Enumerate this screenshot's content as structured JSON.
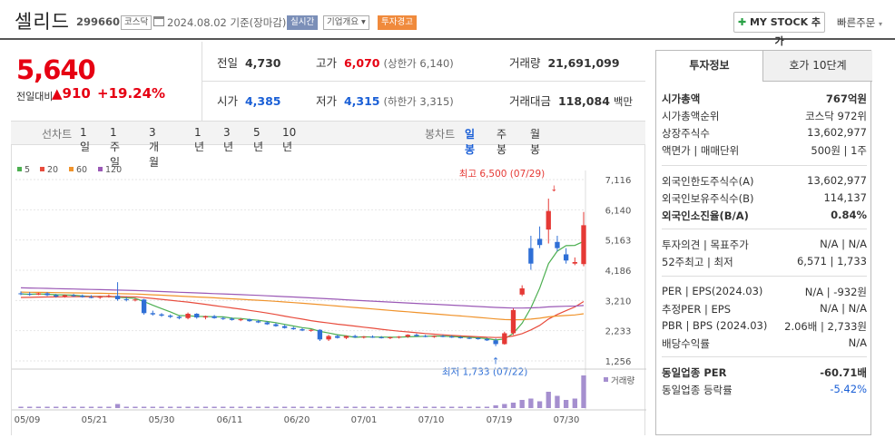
{
  "header": {
    "name": "셀리드",
    "code": "299660",
    "market": "코스닥",
    "date": "2024.08.02 기준(장마감)",
    "tag1": "실시간",
    "tag2": "기업개요 ▾",
    "tag3": "투자경고",
    "mystock": "MY STOCK 추가",
    "quick": "빠른주문"
  },
  "price": {
    "current": "5,640",
    "cmp_label": "전일대비",
    "change": "910",
    "pct": "+19.24%"
  },
  "quote": {
    "prev_l": "전일",
    "prev_v": "4,730",
    "high_l": "고가",
    "high_v": "6,070",
    "high_lim": "(상한가 6,140)",
    "vol_l": "거래량",
    "vol_v": "21,691,099",
    "open_l": "시가",
    "open_v": "4,385",
    "low_l": "저가",
    "low_v": "4,315",
    "low_lim": "(하한가 3,315)",
    "amt_l": "거래대금",
    "amt_v": "118,084",
    "amt_u": "백만"
  },
  "periods": {
    "label": "선차트",
    "items": [
      "1일",
      "1주일",
      "3개월",
      "1년",
      "3년",
      "5년",
      "10년"
    ],
    "candle_label": "봉차트",
    "candle": [
      "일봉",
      "주봉",
      "월봉"
    ]
  },
  "chart_data": {
    "type": "candlestick",
    "legend": [
      {
        "name": "5",
        "color": "#4caf50"
      },
      {
        "name": "20",
        "color": "#e84c3d"
      },
      {
        "name": "60",
        "color": "#f0932b"
      },
      {
        "name": "120",
        "color": "#9b59b6"
      }
    ],
    "y_ticks": [
      "7,116",
      "6,140",
      "5,163",
      "4,186",
      "3,210",
      "2,233",
      "1,256"
    ],
    "ylim": [
      1256,
      7116
    ],
    "x_ticks": [
      "05/09",
      "05/21",
      "05/30",
      "06/11",
      "06/20",
      "07/01",
      "07/10",
      "07/19",
      "07/30"
    ],
    "max_label": "최고 6,500 (07/29)",
    "min_label": "최저 1,733 (07/22)",
    "vol_label": "거래량",
    "candles": [
      [
        3440,
        3500,
        3380,
        3420
      ],
      [
        3420,
        3480,
        3360,
        3400
      ],
      [
        3400,
        3460,
        3380,
        3440
      ],
      [
        3440,
        3480,
        3350,
        3380
      ],
      [
        3380,
        3420,
        3300,
        3340
      ],
      [
        3340,
        3400,
        3300,
        3380
      ],
      [
        3380,
        3420,
        3320,
        3360
      ],
      [
        3360,
        3400,
        3300,
        3320
      ],
      [
        3320,
        3380,
        3280,
        3300
      ],
      [
        3300,
        3360,
        3260,
        3340
      ],
      [
        3340,
        3400,
        3300,
        3360
      ],
      [
        3360,
        3800,
        3200,
        3250
      ],
      [
        3250,
        3320,
        3180,
        3220
      ],
      [
        3220,
        3280,
        3180,
        3240
      ],
      [
        3240,
        3260,
        2750,
        2800
      ],
      [
        2800,
        2880,
        2720,
        2760
      ],
      [
        2760,
        2800,
        2680,
        2720
      ],
      [
        2720,
        2760,
        2640,
        2680
      ],
      [
        2680,
        2720,
        2600,
        2640
      ],
      [
        2640,
        2820,
        2600,
        2780
      ],
      [
        2780,
        2800,
        2620,
        2660
      ],
      [
        2660,
        2720,
        2600,
        2700
      ],
      [
        2700,
        2740,
        2620,
        2640
      ],
      [
        2640,
        2680,
        2580,
        2620
      ],
      [
        2620,
        2660,
        2560,
        2580
      ],
      [
        2580,
        2640,
        2540,
        2600
      ],
      [
        2600,
        2620,
        2520,
        2540
      ],
      [
        2540,
        2580,
        2480,
        2500
      ],
      [
        2500,
        2540,
        2420,
        2440
      ],
      [
        2440,
        2480,
        2360,
        2380
      ],
      [
        2380,
        2420,
        2300,
        2320
      ],
      [
        2320,
        2360,
        2260,
        2280
      ],
      [
        2280,
        2320,
        2220,
        2240
      ],
      [
        2240,
        2280,
        2200,
        2260
      ],
      [
        2260,
        2280,
        1900,
        1950
      ],
      [
        1950,
        2100,
        1900,
        2060
      ],
      [
        2060,
        2100,
        1980,
        2000
      ],
      [
        2000,
        2080,
        1960,
        2060
      ],
      [
        2060,
        2100,
        2000,
        2020
      ],
      [
        2020,
        2060,
        1980,
        2040
      ],
      [
        2040,
        2080,
        2000,
        2020
      ],
      [
        2020,
        2060,
        1980,
        2000
      ],
      [
        2000,
        2040,
        1960,
        2020
      ],
      [
        2020,
        2060,
        1980,
        2040
      ],
      [
        2040,
        2120,
        2000,
        2100
      ],
      [
        2100,
        2140,
        2040,
        2060
      ],
      [
        2060,
        2100,
        2020,
        2040
      ],
      [
        2040,
        2080,
        2000,
        2060
      ],
      [
        2060,
        2100,
        2020,
        2040
      ],
      [
        2040,
        2080,
        2000,
        2020
      ],
      [
        2020,
        2060,
        1980,
        2000
      ],
      [
        2000,
        2040,
        1960,
        1990
      ],
      [
        1990,
        2020,
        1940,
        1960
      ],
      [
        1960,
        2000,
        1900,
        1920
      ],
      [
        1920,
        1980,
        1733,
        1800
      ],
      [
        1800,
        2200,
        1780,
        2150
      ],
      [
        2150,
        2950,
        2100,
        2900
      ],
      [
        3400,
        3700,
        3350,
        3600
      ],
      [
        4900,
        5300,
        4200,
        4400
      ],
      [
        5200,
        5600,
        4900,
        5000
      ],
      [
        5500,
        6500,
        5050,
        6100
      ],
      [
        5100,
        5300,
        4800,
        4900
      ],
      [
        4700,
        4900,
        4400,
        4500
      ],
      [
        4400,
        4600,
        4350,
        4450
      ],
      [
        4385,
        6070,
        4315,
        5640
      ]
    ],
    "volumes": [
      1,
      1,
      1,
      1,
      1,
      1,
      1,
      1,
      1,
      1,
      1,
      3,
      1,
      1,
      1,
      1,
      1,
      1,
      1,
      1,
      1,
      1,
      1,
      1,
      1,
      1,
      1,
      1,
      1,
      1,
      1,
      1,
      1,
      1,
      1,
      1,
      1,
      1,
      1,
      1,
      1,
      1,
      1,
      1,
      1,
      1,
      1,
      1,
      1,
      1,
      1,
      1,
      1,
      1,
      2,
      3,
      4,
      6,
      7,
      5,
      12,
      9,
      6,
      7,
      24
    ]
  },
  "invest": {
    "tab1": "투자정보",
    "tab2": "호가 10단계",
    "rows1": [
      [
        "시가총액",
        "767억원"
      ],
      [
        "시가총액순위",
        "코스닥 972위"
      ],
      [
        "상장주식수",
        "13,602,977"
      ],
      [
        "액면가 | 매매단위",
        "500원 | 1주"
      ]
    ],
    "rows2": [
      [
        "외국인한도주식수(A)",
        "13,602,977"
      ],
      [
        "외국인보유주식수(B)",
        "114,137"
      ],
      [
        "외국인소진율(B/A)",
        "0.84%"
      ]
    ],
    "rows3": [
      [
        "투자의견 | 목표주가",
        "N/A | N/A"
      ],
      [
        "52주최고 | 최저",
        "6,571 | 1,733"
      ]
    ],
    "rows4": [
      [
        "PER | EPS(2024.03)",
        "N/A | -932원"
      ],
      [
        "추정PER | EPS",
        "N/A | N/A"
      ],
      [
        "PBR | BPS (2024.03)",
        "2.06배 | 2,733원"
      ],
      [
        "배당수익률",
        "N/A"
      ]
    ],
    "rows5": [
      [
        "동일업종 PER",
        "-60.71배"
      ],
      [
        "동일업종 등락률",
        "-5.42%"
      ]
    ]
  }
}
